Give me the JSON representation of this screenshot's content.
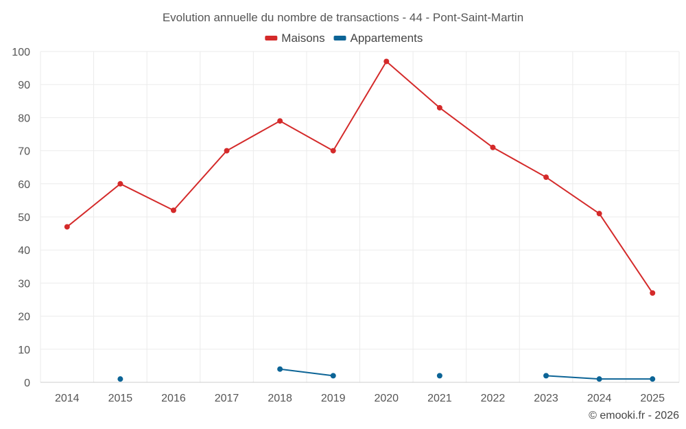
{
  "chart_data": {
    "type": "line",
    "title": "Evolution annuelle du nombre de transactions - 44 - Pont-Saint-Martin",
    "xlabel": "",
    "ylabel": "",
    "categories": [
      "2014",
      "2015",
      "2016",
      "2017",
      "2018",
      "2019",
      "2020",
      "2021",
      "2022",
      "2023",
      "2024",
      "2025"
    ],
    "ylim": [
      0,
      100
    ],
    "yticks": [
      0,
      10,
      20,
      30,
      40,
      50,
      60,
      70,
      80,
      90,
      100
    ],
    "grid": true,
    "legend_position": "top-center",
    "series": [
      {
        "name": "Maisons",
        "color": "#d42a2a",
        "values": [
          47,
          60,
          52,
          70,
          79,
          70,
          97,
          83,
          71,
          62,
          51,
          27
        ]
      },
      {
        "name": "Appartements",
        "color": "#0c6496",
        "values": [
          null,
          1,
          null,
          null,
          4,
          2,
          null,
          2,
          null,
          2,
          1,
          1
        ]
      }
    ]
  },
  "credit": "© emooki.fr - 2026"
}
